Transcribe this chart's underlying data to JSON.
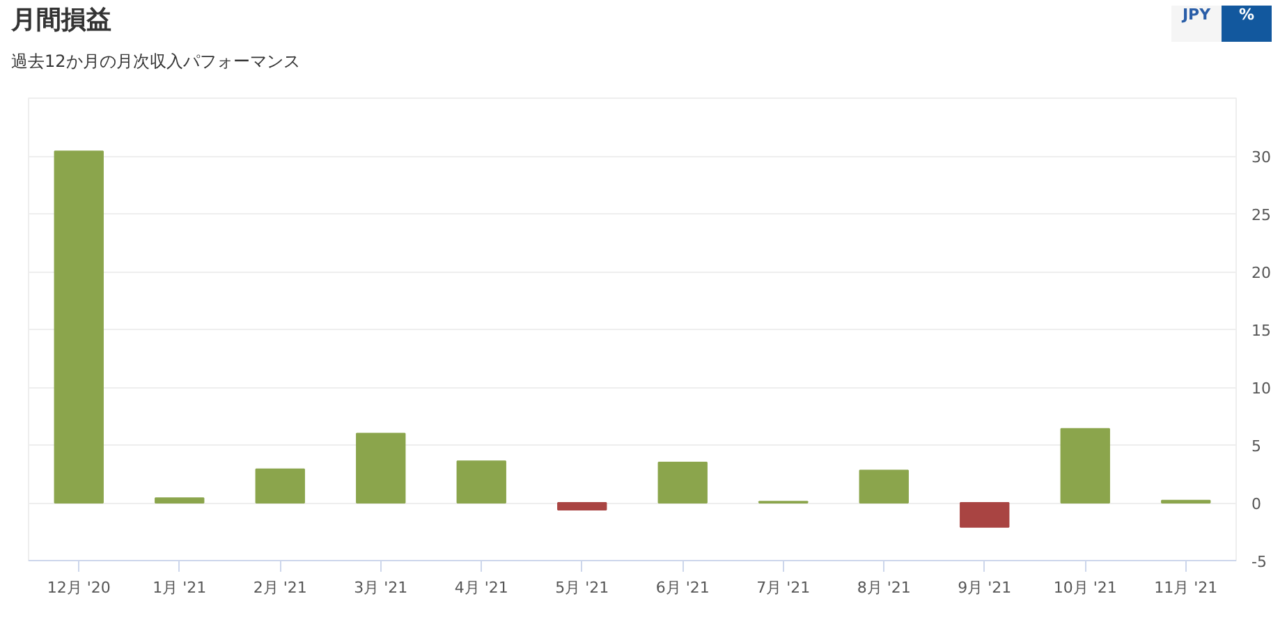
{
  "chart_data": {
    "type": "bar",
    "title": "月間損益",
    "subtitle": "過去12か月の月次収入パフォーマンス",
    "annotations": [
      "JPY",
      "%"
    ],
    "categories": [
      "12月 '20",
      "1月 '21",
      "2月 '21",
      "3月 '21",
      "4月 '21",
      "5月 '21",
      "6月 '21",
      "7月 '21",
      "8月 '21",
      "9月 '21",
      "10月 '21",
      "11月 '21"
    ],
    "values": [
      30.4,
      0.4,
      2.9,
      6.0,
      3.6,
      -0.6,
      3.5,
      0.1,
      2.8,
      -2.1,
      6.4,
      0.2
    ],
    "colors": [
      "#8ba54c",
      "#8ba54c",
      "#8ba54c",
      "#8ba54c",
      "#8ba54c",
      "#a94442",
      "#8ba54c",
      "#8ba54c",
      "#8ba54c",
      "#a94442",
      "#8ba54c",
      "#8ba54c"
    ],
    "ylim": [
      -5,
      35
    ],
    "yticks": [
      -5,
      0,
      5,
      10,
      15,
      20,
      25,
      30,
      {
        "value": 35,
        "label": null
      }
    ],
    "grid": "y"
  }
}
